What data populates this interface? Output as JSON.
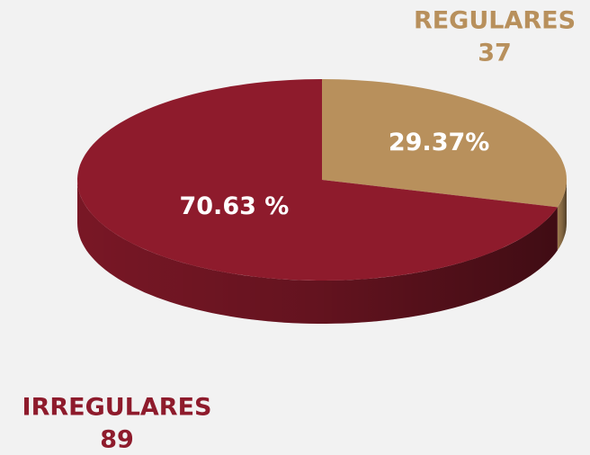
{
  "chart_data": {
    "type": "pie",
    "categories": [
      "REGULARES",
      "IRREGULARES"
    ],
    "values": [
      29.37,
      70.63
    ],
    "value_labels": [
      "29.37%",
      "70.63 %"
    ],
    "counts": [
      37,
      89
    ],
    "colors": [
      "#b8905c",
      "#8e1b2c"
    ]
  }
}
